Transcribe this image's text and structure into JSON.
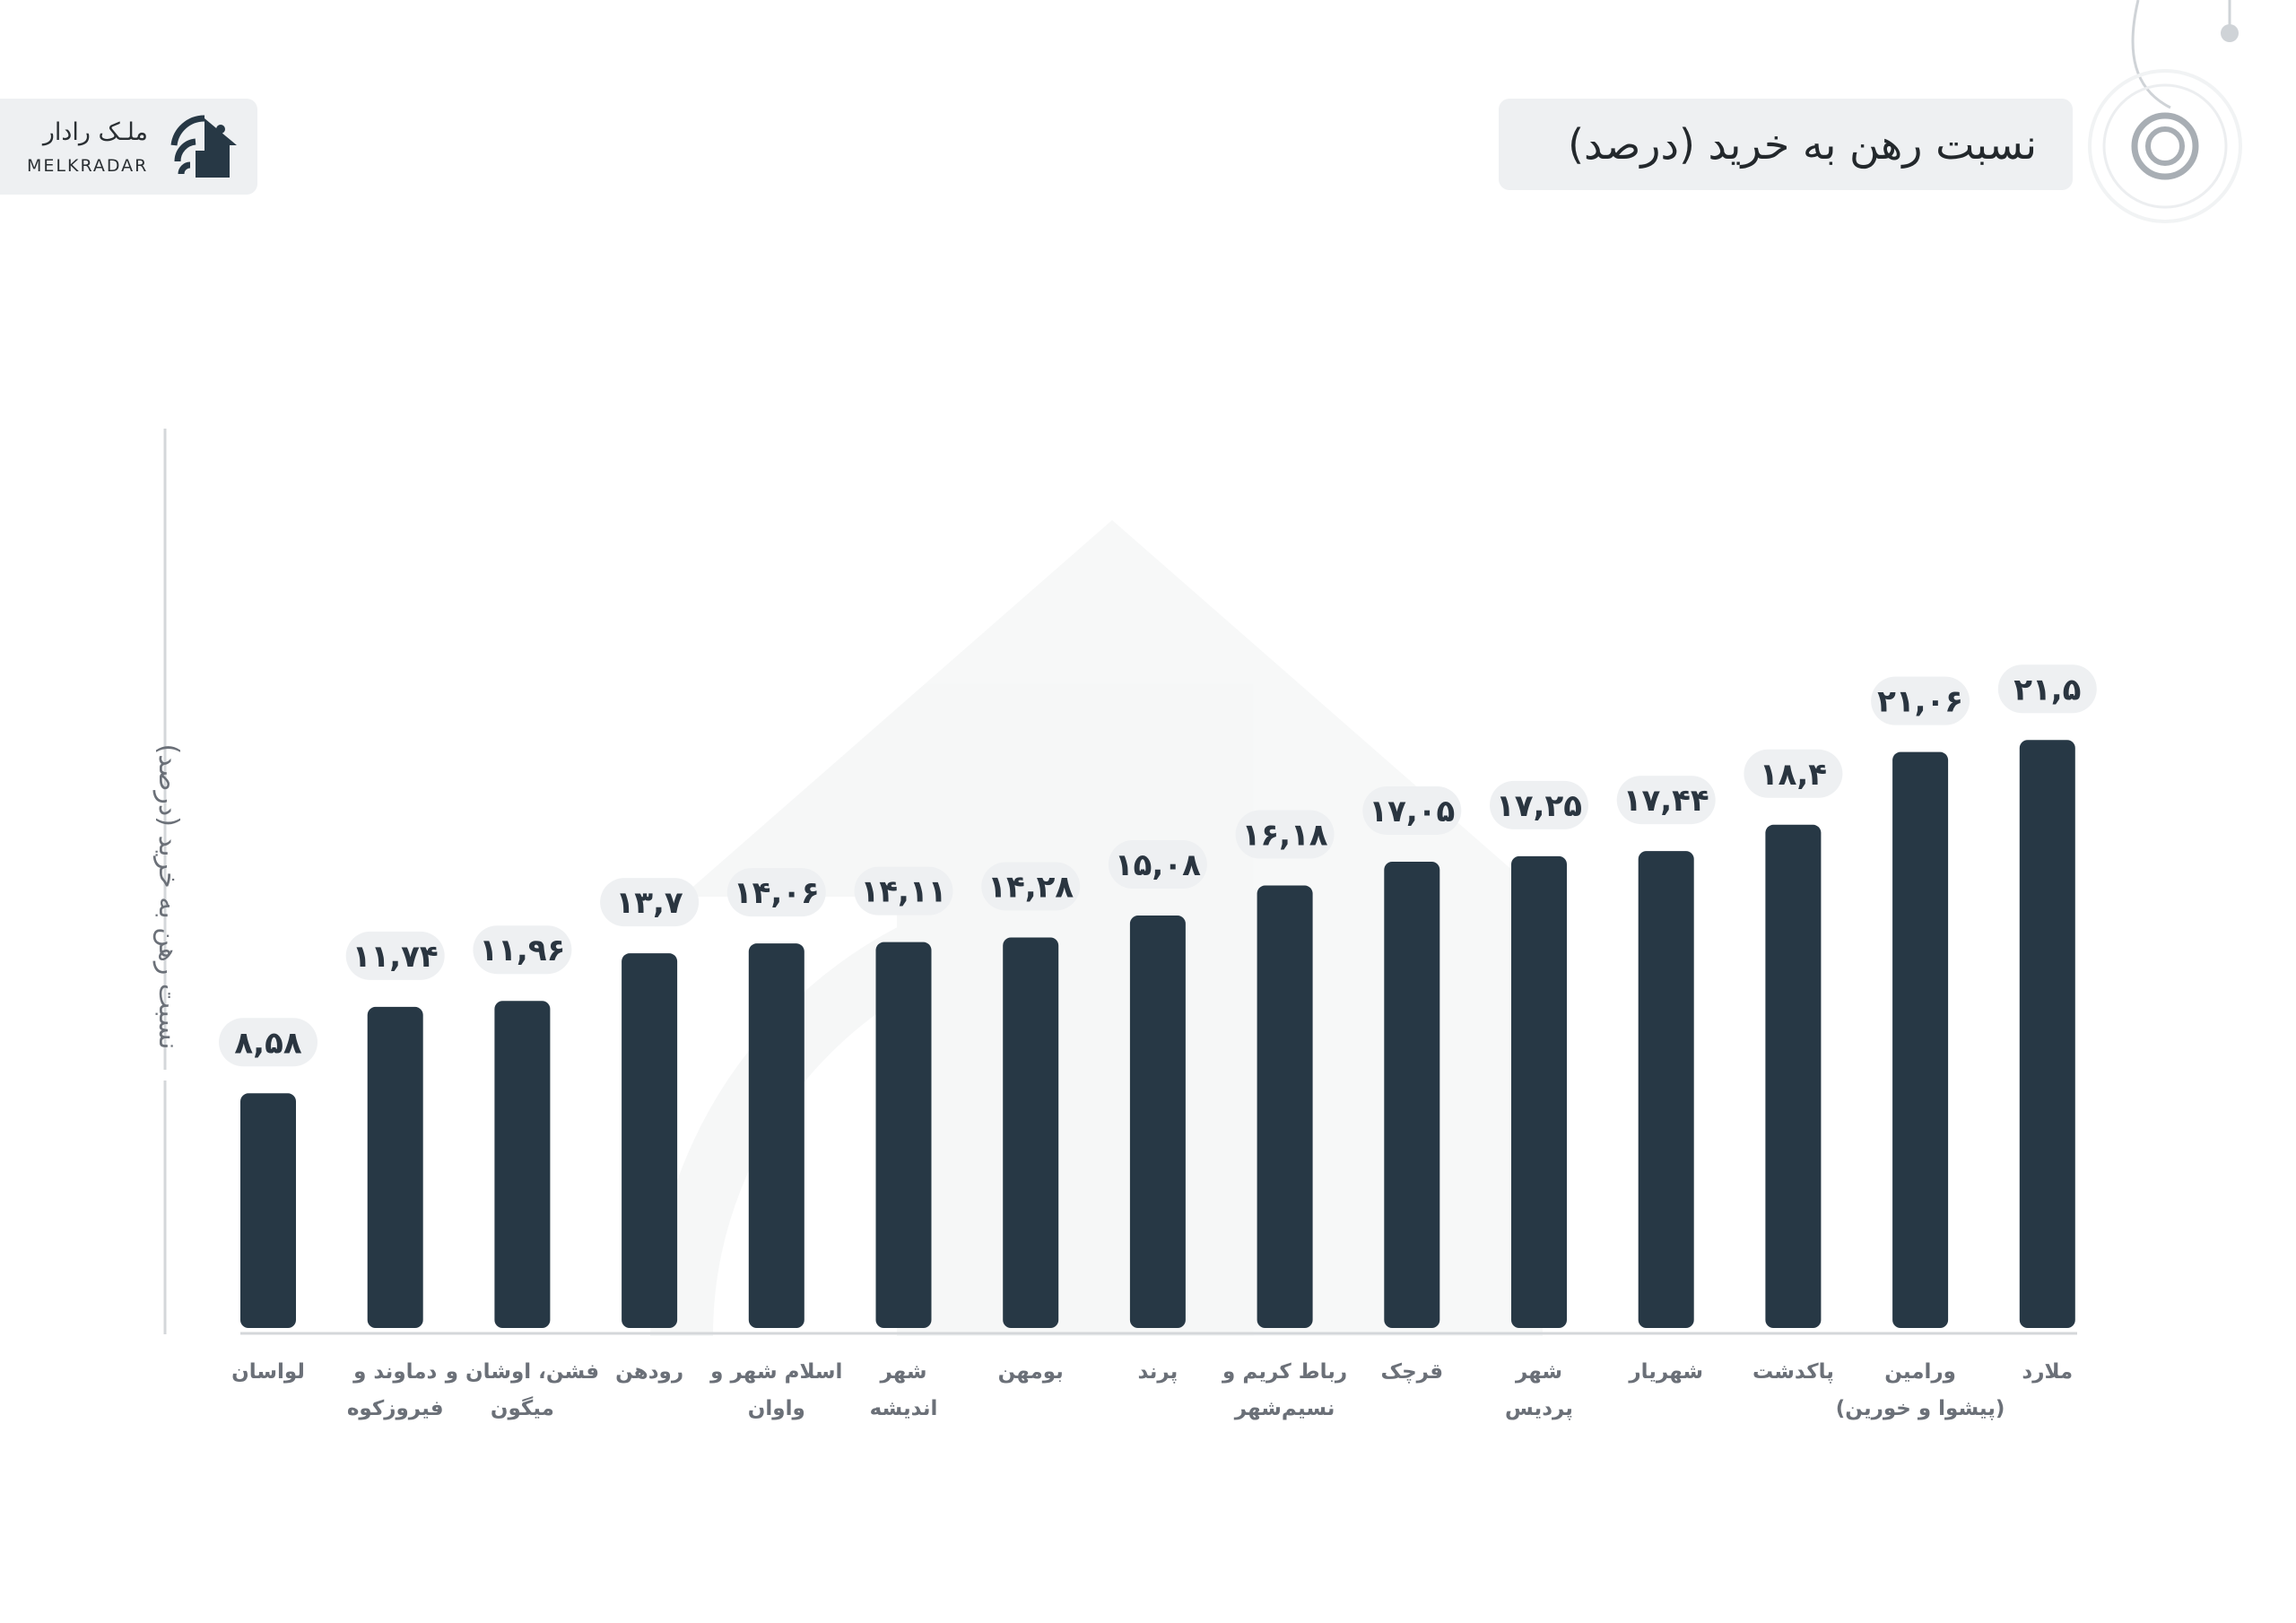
{
  "brand": {
    "name_fa": "ملـک رادار",
    "name_en": "MELKRADAR"
  },
  "icons": [
    "house-radar-logo-icon",
    "radar-target-icon"
  ],
  "colors": {
    "bar": "#273845",
    "label_bg": "#eef0f2",
    "axis": "#d4d7da",
    "text": "#2a3540"
  },
  "chart_data": {
    "type": "bar",
    "title": "نسبت رهن به خرید (درصد)",
    "xlabel": "",
    "ylabel": "نسبت رهن به خرید (درصد)",
    "ylim": [
      0,
      22.5
    ],
    "grid": false,
    "legend": "none",
    "categories": [
      "لواسان",
      "دماوند و فیروزکوه",
      "فشن، اوشان و میگون",
      "رودهن",
      "اسلام شهر و واوان",
      "شهر اندیشه",
      "بومهن",
      "پرند",
      "رباط کریم و نسیم‌شهر",
      "قرچک",
      "شهر پردیس",
      "شهریار",
      "پاکدشت",
      "ورامین (پیشوا و خورین)",
      "ملارد"
    ],
    "category_lines": [
      [
        "لواسان"
      ],
      [
        "دماوند و",
        "فیروزکوه"
      ],
      [
        "فشن، اوشان و",
        "میگون"
      ],
      [
        "رودهن"
      ],
      [
        "اسلام شهر و",
        "واوان"
      ],
      [
        "شهر",
        "اندیشه"
      ],
      [
        "بومهن"
      ],
      [
        "پرند"
      ],
      [
        "رباط کریم و",
        "نسیم‌شهر"
      ],
      [
        "قرچک"
      ],
      [
        "شهر",
        "پردیس"
      ],
      [
        "شهریار"
      ],
      [
        "پاکدشت"
      ],
      [
        "ورامین",
        "(پیشوا و خورین)"
      ],
      [
        "ملارد"
      ]
    ],
    "values": [
      8.58,
      11.74,
      11.96,
      13.7,
      14.06,
      14.11,
      14.28,
      15.08,
      16.18,
      17.05,
      17.25,
      17.44,
      18.4,
      21.06,
      21.5
    ],
    "value_labels": [
      "۸,۵۸",
      "۱۱,۷۴",
      "۱۱,۹۶",
      "۱۳,۷",
      "۱۴,۰۶",
      "۱۴,۱۱",
      "۱۴,۲۸",
      "۱۵,۰۸",
      "۱۶,۱۸",
      "۱۷,۰۵",
      "۱۷,۲۵",
      "۱۷,۴۴",
      "۱۸,۴",
      "۲۱,۰۶",
      "۲۱,۵"
    ]
  }
}
